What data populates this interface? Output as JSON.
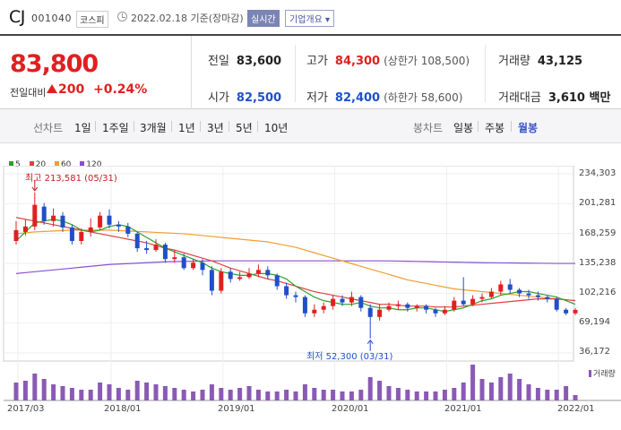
{
  "header": {
    "company": "CJ",
    "code": "001040",
    "market": "코스피",
    "date": "2022.02.18 기준(장마감)",
    "realtime_button": "실시간",
    "corp_button": "기업개요 ▾"
  },
  "price": {
    "current": "83,800",
    "change_label": "전일대비",
    "change_value": "200",
    "change_pct": "+0.24%"
  },
  "stats": {
    "prev_label": "전일",
    "prev_value": "83,600",
    "high_label": "고가",
    "high_value": "84,300",
    "upper_limit": "(상한가 108,500)",
    "volume_label": "거래량",
    "volume_value": "43,125",
    "open_label": "시가",
    "open_value": "82,500",
    "low_label": "저가",
    "low_value": "82,400",
    "lower_limit": "(하한가 58,600)",
    "amount_label": "거래대금",
    "amount_value": "3,610 백만"
  },
  "periods": {
    "line_label": "선차트",
    "items": [
      "1일",
      "1주일",
      "3개월",
      "1년",
      "3년",
      "5년",
      "10년"
    ],
    "candle_label": "봉차트",
    "candle_items": [
      "일봉",
      "주봉",
      "월봉"
    ],
    "active_candle": "월봉"
  },
  "legend": [
    {
      "label": "5",
      "color": "#2ca02c"
    },
    {
      "label": "20",
      "color": "#e04040"
    },
    {
      "label": "60",
      "color": "#f39c34"
    },
    {
      "label": "120",
      "color": "#8a4fd0"
    }
  ],
  "annotations": {
    "high": "최고 213,581 (05/31)",
    "low": "최저 52,300 (03/31)"
  },
  "volume_label": "거래량",
  "colors": {
    "up": "#e02020",
    "down": "#2050c8",
    "accent": "#3a54c8"
  },
  "chart_data": {
    "type": "candlestick",
    "y_ticks": [
      "234,303",
      "201,281",
      "168,259",
      "135,238",
      "102,216",
      "69,194",
      "36,172"
    ],
    "ylim": [
      36172,
      234303
    ],
    "x_ticks": [
      "2017/03",
      "2018/01",
      "2019/01",
      "2020/01",
      "2021/01",
      "2022/01"
    ],
    "candles": [
      [
        160000,
        172000,
        182000,
        156000
      ],
      [
        170000,
        176000,
        184000,
        166000
      ],
      [
        176000,
        200000,
        213581,
        172000
      ],
      [
        198000,
        182000,
        202000,
        178000
      ],
      [
        182000,
        188000,
        196000,
        176000
      ],
      [
        188000,
        175000,
        192000,
        170000
      ],
      [
        175000,
        160000,
        178000,
        156000
      ],
      [
        160000,
        170000,
        174000,
        156000
      ],
      [
        170000,
        175000,
        185000,
        165000
      ],
      [
        175000,
        188000,
        192000,
        172000
      ],
      [
        188000,
        178000,
        195000,
        174000
      ],
      [
        178000,
        176000,
        182000,
        170000
      ],
      [
        176000,
        168000,
        180000,
        164000
      ],
      [
        168000,
        152000,
        170000,
        148000
      ],
      [
        152000,
        150000,
        160000,
        146000
      ],
      [
        150000,
        156000,
        162000,
        148000
      ],
      [
        156000,
        140000,
        158000,
        136000
      ],
      [
        140000,
        142000,
        150000,
        136000
      ],
      [
        142000,
        130000,
        146000,
        128000
      ],
      [
        130000,
        136000,
        140000,
        128000
      ],
      [
        136000,
        128000,
        140000,
        122000
      ],
      [
        128000,
        105000,
        132000,
        100000
      ],
      [
        105000,
        126000,
        130000,
        102000
      ],
      [
        126000,
        118000,
        130000,
        114000
      ],
      [
        118000,
        120000,
        126000,
        116000
      ],
      [
        120000,
        124000,
        130000,
        118000
      ],
      [
        124000,
        128000,
        134000,
        120000
      ],
      [
        128000,
        122000,
        132000,
        118000
      ],
      [
        122000,
        110000,
        124000,
        106000
      ],
      [
        110000,
        100000,
        114000,
        96000
      ],
      [
        100000,
        98000,
        104000,
        92000
      ],
      [
        98000,
        80000,
        100000,
        76000
      ],
      [
        80000,
        84000,
        90000,
        76000
      ],
      [
        84000,
        88000,
        92000,
        80000
      ],
      [
        88000,
        96000,
        100000,
        84000
      ],
      [
        96000,
        92000,
        100000,
        88000
      ],
      [
        92000,
        98000,
        104000,
        88000
      ],
      [
        98000,
        86000,
        100000,
        82000
      ],
      [
        86000,
        76000,
        90000,
        52300
      ],
      [
        76000,
        84000,
        90000,
        72000
      ],
      [
        84000,
        88000,
        92000,
        82000
      ],
      [
        88000,
        90000,
        94000,
        84000
      ],
      [
        90000,
        86000,
        92000,
        82000
      ],
      [
        86000,
        88000,
        90000,
        82000
      ],
      [
        88000,
        84000,
        90000,
        80000
      ],
      [
        84000,
        80000,
        86000,
        76000
      ],
      [
        80000,
        84000,
        88000,
        78000
      ],
      [
        84000,
        94000,
        98000,
        82000
      ],
      [
        94000,
        90000,
        120000,
        88000
      ],
      [
        90000,
        96000,
        100000,
        88000
      ],
      [
        96000,
        98000,
        102000,
        92000
      ],
      [
        98000,
        104000,
        108000,
        96000
      ],
      [
        104000,
        112000,
        116000,
        100000
      ],
      [
        112000,
        106000,
        118000,
        102000
      ],
      [
        106000,
        102000,
        108000,
        98000
      ],
      [
        102000,
        100000,
        106000,
        96000
      ],
      [
        100000,
        98000,
        104000,
        94000
      ],
      [
        98000,
        96000,
        100000,
        92000
      ],
      [
        96000,
        84000,
        98000,
        82000
      ],
      [
        84000,
        80000,
        86000,
        78000
      ],
      [
        80000,
        83800,
        86000,
        78000
      ]
    ],
    "ma5": [
      160000,
      170000,
      180000,
      182000,
      184000,
      182000,
      178000,
      172000,
      170000,
      172000,
      176000,
      178000,
      176000,
      170000,
      164000,
      158000,
      152000,
      148000,
      144000,
      140000,
      136000,
      130000,
      126000,
      124000,
      122000,
      122000,
      124000,
      124000,
      122000,
      118000,
      110000,
      104000,
      98000,
      94000,
      92000,
      90000,
      90000,
      92000,
      88000,
      86000,
      86000,
      84000,
      84000,
      86000,
      86000,
      84000,
      82000,
      84000,
      86000,
      90000,
      94000,
      96000,
      100000,
      102000,
      104000,
      104000,
      102000,
      100000,
      98000,
      94000,
      90000
    ],
    "ma20": [
      186000,
      184000,
      182000,
      180000,
      178000,
      176000,
      174000,
      172000,
      170000,
      168000,
      166000,
      164000,
      162000,
      160000,
      158000,
      155000,
      152000,
      150000,
      147000,
      144000,
      141000,
      138000,
      134000,
      130000,
      127000,
      124000,
      121000,
      118000,
      116000,
      113000,
      110000,
      107000,
      104000,
      102000,
      100000,
      98000,
      96000,
      94000,
      92000,
      90000,
      90000,
      89000,
      88000,
      88000,
      88000,
      87000,
      87000,
      87000,
      88000,
      89000,
      90000,
      91000,
      92000,
      93000,
      94000,
      95000,
      96000,
      96000,
      96000,
      95000,
      94000
    ],
    "ma60": [
      168000,
      169000,
      170000,
      170500,
      171000,
      171500,
      172000,
      172000,
      172000,
      172000,
      172000,
      171500,
      171000,
      170500,
      170000,
      169500,
      169000,
      168500,
      168000,
      167000,
      166000,
      165000,
      164000,
      163000,
      162000,
      161000,
      160000,
      159000,
      157000,
      155000,
      153000,
      150000,
      147000,
      144000,
      141000,
      138000,
      135000,
      132000,
      129000,
      126000,
      123000,
      120000,
      117000,
      115000,
      113000,
      111000,
      109000,
      107000,
      106000,
      105000,
      104000,
      103000,
      102000,
      101000,
      100000,
      99000,
      98000,
      97000,
      96000,
      95000,
      94000
    ],
    "ma120": [
      124000,
      125000,
      126000,
      127000,
      128000,
      129000,
      130000,
      131000,
      132000,
      133000,
      134000,
      134500,
      135000,
      135500,
      136000,
      136500,
      137000,
      137200,
      137400,
      137600,
      137800,
      138000,
      138000,
      138000,
      138000,
      138000,
      138000,
      138000,
      138000,
      138000,
      138000,
      138000,
      138000,
      138000,
      138000,
      138000,
      138000,
      138000,
      138000,
      138000,
      138000,
      137800,
      137600,
      137400,
      137200,
      137000,
      136800,
      136600,
      136400,
      136200,
      136000,
      135900,
      135800,
      135700,
      135600,
      135500,
      135400,
      135300,
      135200,
      135200,
      135200
    ],
    "volume": [
      20,
      22,
      30,
      24,
      18,
      16,
      14,
      12,
      12,
      20,
      18,
      14,
      12,
      22,
      20,
      18,
      16,
      14,
      12,
      10,
      12,
      18,
      14,
      12,
      14,
      16,
      12,
      10,
      10,
      12,
      10,
      18,
      14,
      12,
      12,
      10,
      10,
      12,
      26,
      22,
      16,
      14,
      12,
      10,
      10,
      10,
      12,
      14,
      20,
      40,
      24,
      20,
      26,
      30,
      24,
      18,
      14,
      12,
      12,
      16,
      6
    ]
  }
}
